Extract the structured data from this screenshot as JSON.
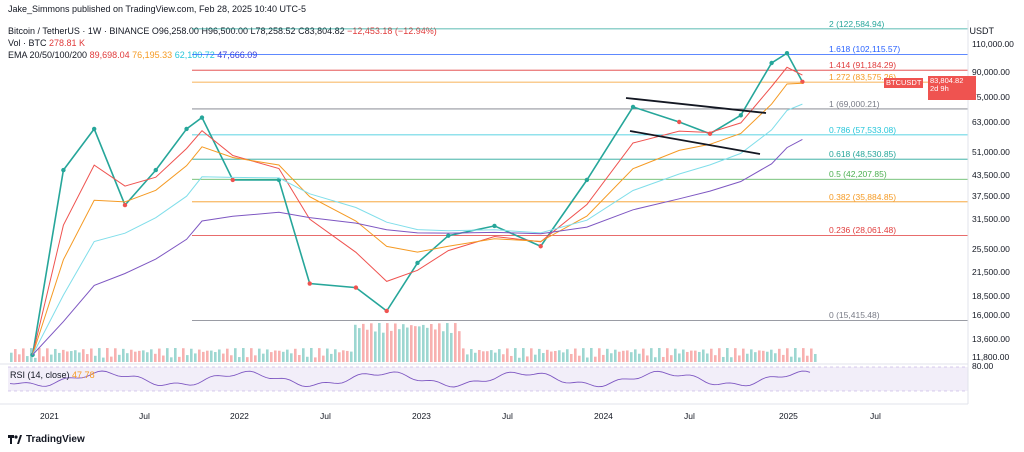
{
  "publish_line": "Jake_Simmons published on TradingView.com, Feb 28, 2025 10:40 UTC-5",
  "header": {
    "symbol_line": "Bitcoin / TetherUS · 1W · BINANCE",
    "ohlc": {
      "o": "O96,258.00",
      "h": "H96,500.00",
      "l": "L78,258.52",
      "c": "C83,804.82",
      "chg": "−12,453.18 (−12.94%)"
    },
    "vol_label": "Vol · BTC",
    "vol_value": "278.81 K",
    "ema_label": "EMA 20/50/100/200",
    "ema_values": [
      "89,698.04",
      "76,195.33",
      "62,180.72",
      "47,666.09"
    ]
  },
  "axis_currency": "USDT",
  "price_ticks": [
    "110,000.00",
    "90,000.00",
    "75,000.00",
    "63,000.00",
    "51,000.00",
    "43,500.00",
    "37,500.00",
    "31,500.00",
    "25,500.00",
    "21,500.00",
    "18,500.00",
    "16,000.00",
    "13,600.00",
    "11,800.00"
  ],
  "rsi": {
    "label": "RSI (14, close)",
    "value": "47.78",
    "tick": "80.00"
  },
  "badge": {
    "symbol": "BTCUSDT",
    "price": "83,804.82",
    "countdown": "2d 9h"
  },
  "date_ticks": [
    "2021",
    "Jul",
    "2022",
    "Jul",
    "2023",
    "Jul",
    "2024",
    "Jul",
    "2025",
    "Jul"
  ],
  "fib_levels": [
    {
      "label": "2 (122,584.94)",
      "color": "#26a69a"
    },
    {
      "label": "1.618 (102,115.57)",
      "color": "#2962ff"
    },
    {
      "label": "1.414 (91,184.29)",
      "color": "#e03b3b"
    },
    {
      "label": "1.272 (83,575.26)",
      "color": "#f59a23"
    },
    {
      "label": "1 (69,000.21)",
      "color": "#787b86"
    },
    {
      "label": "0.786 (57,533.08)",
      "color": "#26c6da"
    },
    {
      "label": "0.618 (48,530.85)",
      "color": "#26a69a"
    },
    {
      "label": "0.5 (42,207.85)",
      "color": "#4caf50"
    },
    {
      "label": "0.382 (35,884.85)",
      "color": "#f59a23"
    },
    {
      "label": "0.236 (28,061.48)",
      "color": "#e03b3b"
    },
    {
      "label": "0 (15,415.48)",
      "color": "#787b86"
    }
  ],
  "branding": "TradingView",
  "chart_data": {
    "type": "line",
    "title": "Bitcoin / TetherUS · 1W · BINANCE",
    "x": [
      "2020-12",
      "2021-02",
      "2021-04",
      "2021-06",
      "2021-08",
      "2021-10",
      "2021-11",
      "2022-01",
      "2022-04",
      "2022-06",
      "2022-09",
      "2022-11",
      "2023-01",
      "2023-03",
      "2023-06",
      "2023-09",
      "2023-12",
      "2024-03",
      "2024-06",
      "2024-08",
      "2024-10",
      "2024-12",
      "2025-01",
      "2025-02"
    ],
    "series": [
      {
        "name": "Close",
        "values": [
          12000,
          45000,
          60000,
          35000,
          45000,
          60000,
          65000,
          42000,
          42000,
          20000,
          19500,
          16500,
          23000,
          28000,
          30000,
          26000,
          42000,
          70000,
          63000,
          58000,
          66000,
          96000,
          103000,
          83804.82
        ]
      }
    ],
    "ylim": [
      11800,
      125000
    ],
    "scale": "log",
    "grid": false
  }
}
